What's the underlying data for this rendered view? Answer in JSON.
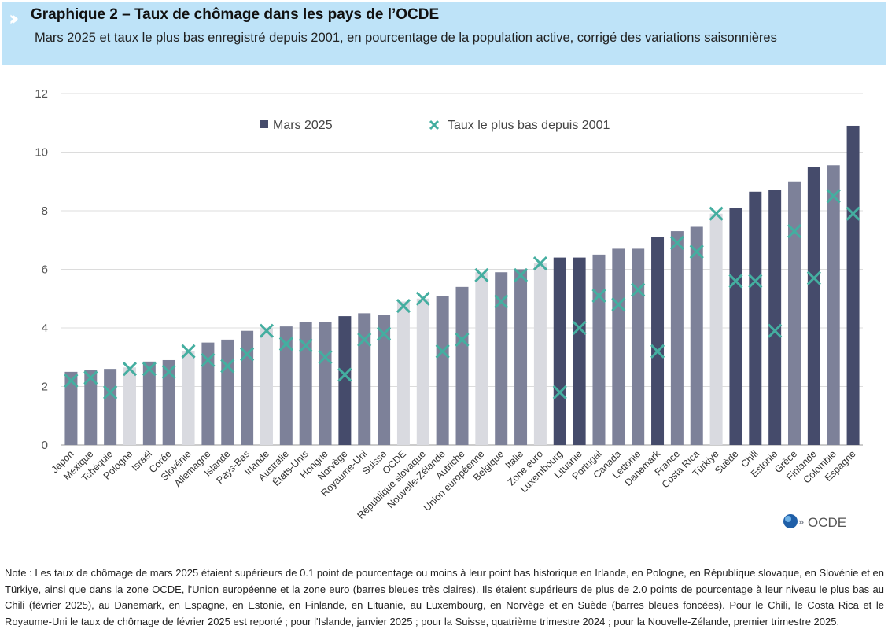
{
  "header": {
    "title": "Graphique 2 – Taux de chômage dans les pays de l’OCDE",
    "subtitle": "Mars 2025 et taux le plus bas enregistré depuis 2001, en pourcentage de la population active, corrigé des variations saisonnières",
    "icon": "double-chevron-icon"
  },
  "colors": {
    "dark": "#454b6b",
    "mid": "#7d8199",
    "light": "#d9dae0",
    "marker": "#44aea0",
    "header_bg": "#bee3f8"
  },
  "chart_data": {
    "type": "bar",
    "ylim": [
      0,
      12
    ],
    "yticks": [
      0,
      2,
      4,
      6,
      8,
      10,
      12
    ],
    "grid": true,
    "legend_position": "top",
    "categories": [
      "Japon",
      "Mexique",
      "Tchéquie",
      "Pologne",
      "Israël",
      "Corée",
      "Slovénie",
      "Allemagne",
      "Islande",
      "Pays-Bas",
      "Irlande",
      "Australie",
      "États-Unis",
      "Hongrie",
      "Norvège",
      "Royaume-Uni",
      "Suisse",
      "OCDE",
      "République slovaque",
      "Nouvelle-Zélande",
      "Autriche",
      "Union européenne",
      "Belgique",
      "Italie",
      "Zone euro",
      "Luxembourg",
      "Lituanie",
      "Portugal",
      "Canada",
      "Lettonie",
      "Danemark",
      "France",
      "Costa Rica",
      "Türkiye",
      "Suède",
      "Chili",
      "Estonie",
      "Grèce",
      "Finlande",
      "Colombie",
      "Espagne"
    ],
    "bar_shade": [
      "mid",
      "mid",
      "mid",
      "light",
      "mid",
      "mid",
      "light",
      "mid",
      "mid",
      "mid",
      "light",
      "mid",
      "mid",
      "mid",
      "dark",
      "mid",
      "mid",
      "light",
      "light",
      "mid",
      "mid",
      "light",
      "mid",
      "mid",
      "light",
      "dark",
      "dark",
      "mid",
      "mid",
      "mid",
      "dark",
      "mid",
      "mid",
      "light",
      "dark",
      "dark",
      "dark",
      "mid",
      "dark",
      "mid",
      "dark"
    ],
    "series": [
      {
        "name": "Mars 2025",
        "type": "bar",
        "values": [
          2.5,
          2.55,
          2.6,
          2.65,
          2.85,
          2.9,
          3.2,
          3.5,
          3.6,
          3.9,
          4.0,
          4.05,
          4.2,
          4.2,
          4.4,
          4.5,
          4.45,
          4.9,
          5.0,
          5.1,
          5.4,
          5.9,
          5.9,
          6.0,
          6.2,
          6.4,
          6.4,
          6.5,
          6.7,
          6.7,
          7.1,
          7.3,
          7.45,
          7.9,
          8.1,
          8.65,
          8.7,
          9.0,
          9.5,
          9.55,
          10.9
        ]
      },
      {
        "name": "Taux le plus bas depuis 2001",
        "type": "scatter",
        "values": [
          2.2,
          2.3,
          1.8,
          2.6,
          2.6,
          2.5,
          3.2,
          2.9,
          2.7,
          3.1,
          3.9,
          3.45,
          3.4,
          3.0,
          2.4,
          3.6,
          3.8,
          4.75,
          5.0,
          3.2,
          3.6,
          5.8,
          4.9,
          5.8,
          6.2,
          1.8,
          4.0,
          5.1,
          4.8,
          5.3,
          3.2,
          6.9,
          6.6,
          7.9,
          5.6,
          5.6,
          3.9,
          7.3,
          5.7,
          8.5,
          7.9
        ]
      }
    ]
  },
  "logo": {
    "text": "OCDE"
  },
  "note": "Note : Les taux de chômage de mars 2025 étaient supérieurs de 0.1 point de pourcentage ou moins à leur point bas historique en Irlande, en Pologne, en République slovaque, en Slovénie et en Türkiye, ainsi que dans la zone OCDE, l'Union européenne et la zone euro (barres bleues très claires). Ils étaient supérieurs de plus de 2.0 points de pourcentage à leur niveau le plus bas au Chili (février 2025), au Danemark, en Espagne, en Estonie, en Finlande, en Lituanie, au Luxembourg, en Norvège et en Suède (barres bleues foncées). Pour le Chili, le Costa Rica et le Royaume-Uni le taux de chômage de février 2025 est reporté ; pour l'Islande, janvier 2025 ; pour la Suisse, quatrième trimestre 2024 ; pour la Nouvelle-Zélande, premier trimestre 2025."
}
